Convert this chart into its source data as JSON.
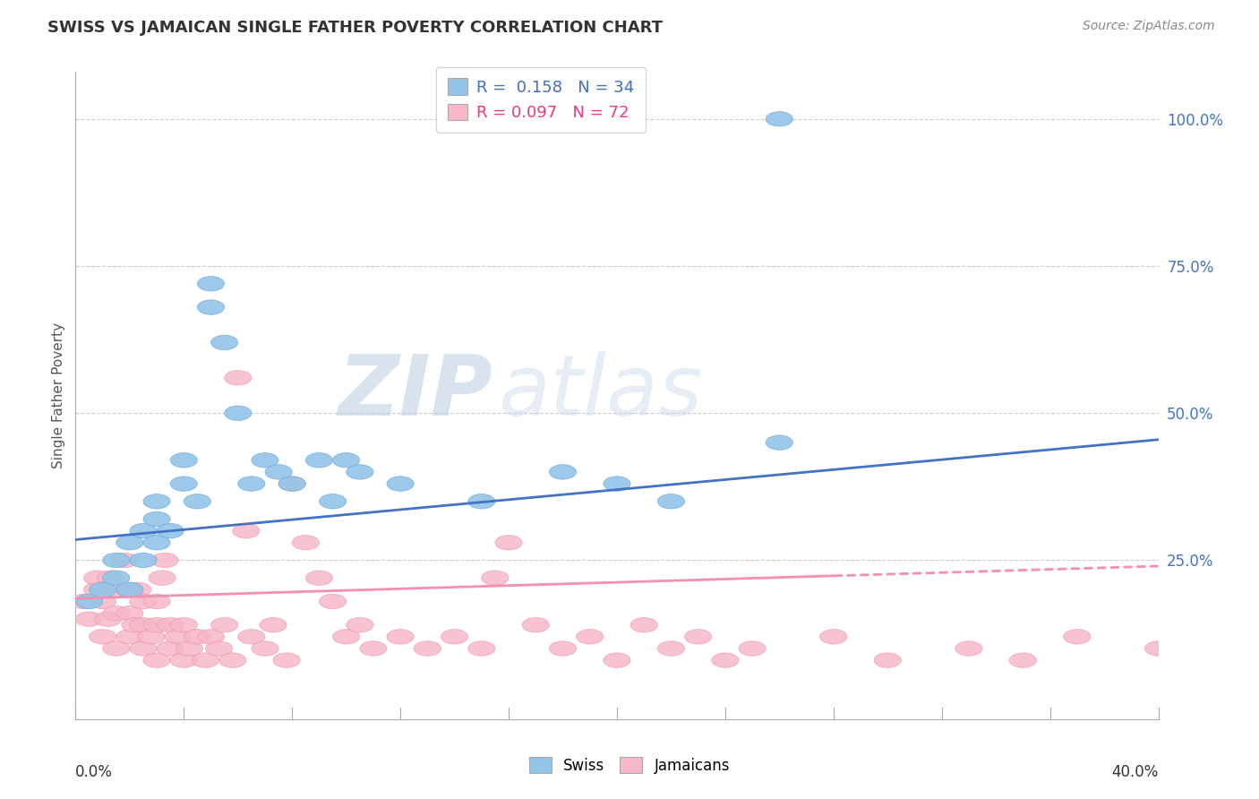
{
  "title": "SWISS VS JAMAICAN SINGLE FATHER POVERTY CORRELATION CHART",
  "source": "Source: ZipAtlas.com",
  "ylabel": "Single Father Poverty",
  "xlim": [
    0,
    0.4
  ],
  "ylim": [
    -0.02,
    1.08
  ],
  "swiss_R": 0.158,
  "swiss_N": 34,
  "jamaican_R": 0.097,
  "jamaican_N": 72,
  "swiss_color": "#92C5E8",
  "jamaican_color": "#F7B8C8",
  "swiss_line_color": "#4472C4",
  "jamaican_line_color": "#F48FB1",
  "watermark_zip": "ZIP",
  "watermark_atlas": "atlas",
  "watermark_color_zip": "#C5D8EC",
  "watermark_color_atlas": "#C5D8EC",
  "background_color": "#FFFFFF",
  "swiss_x": [
    0.005,
    0.01,
    0.015,
    0.015,
    0.02,
    0.02,
    0.025,
    0.025,
    0.03,
    0.03,
    0.03,
    0.035,
    0.04,
    0.04,
    0.045,
    0.05,
    0.05,
    0.055,
    0.06,
    0.065,
    0.07,
    0.075,
    0.08,
    0.09,
    0.095,
    0.1,
    0.105,
    0.12,
    0.15,
    0.18,
    0.2,
    0.22,
    0.26,
    0.26
  ],
  "swiss_y": [
    0.18,
    0.2,
    0.22,
    0.25,
    0.2,
    0.28,
    0.25,
    0.3,
    0.28,
    0.32,
    0.35,
    0.3,
    0.38,
    0.42,
    0.35,
    0.68,
    0.72,
    0.62,
    0.5,
    0.38,
    0.42,
    0.4,
    0.38,
    0.42,
    0.35,
    0.42,
    0.4,
    0.38,
    0.35,
    0.4,
    0.38,
    0.35,
    0.45,
    1.0
  ],
  "jamaican_x": [
    0.003,
    0.005,
    0.008,
    0.008,
    0.01,
    0.01,
    0.012,
    0.013,
    0.015,
    0.015,
    0.015,
    0.018,
    0.02,
    0.02,
    0.02,
    0.022,
    0.023,
    0.025,
    0.025,
    0.025,
    0.028,
    0.03,
    0.03,
    0.03,
    0.032,
    0.033,
    0.035,
    0.035,
    0.038,
    0.04,
    0.04,
    0.042,
    0.045,
    0.048,
    0.05,
    0.053,
    0.055,
    0.058,
    0.06,
    0.063,
    0.065,
    0.07,
    0.073,
    0.078,
    0.08,
    0.085,
    0.09,
    0.095,
    0.1,
    0.105,
    0.11,
    0.12,
    0.13,
    0.14,
    0.15,
    0.155,
    0.16,
    0.17,
    0.18,
    0.19,
    0.2,
    0.21,
    0.22,
    0.23,
    0.24,
    0.25,
    0.28,
    0.3,
    0.33,
    0.35,
    0.37,
    0.4
  ],
  "jamaican_y": [
    0.18,
    0.15,
    0.2,
    0.22,
    0.12,
    0.18,
    0.15,
    0.22,
    0.1,
    0.16,
    0.2,
    0.25,
    0.12,
    0.16,
    0.2,
    0.14,
    0.2,
    0.1,
    0.14,
    0.18,
    0.12,
    0.08,
    0.14,
    0.18,
    0.22,
    0.25,
    0.1,
    0.14,
    0.12,
    0.08,
    0.14,
    0.1,
    0.12,
    0.08,
    0.12,
    0.1,
    0.14,
    0.08,
    0.56,
    0.3,
    0.12,
    0.1,
    0.14,
    0.08,
    0.38,
    0.28,
    0.22,
    0.18,
    0.12,
    0.14,
    0.1,
    0.12,
    0.1,
    0.12,
    0.1,
    0.22,
    0.28,
    0.14,
    0.1,
    0.12,
    0.08,
    0.14,
    0.1,
    0.12,
    0.08,
    0.1,
    0.12,
    0.08,
    0.1,
    0.08,
    0.12,
    0.1
  ],
  "swiss_trend_x0": 0.0,
  "swiss_trend_x1": 0.4,
  "swiss_trend_y0": 0.285,
  "swiss_trend_y1": 0.455,
  "jam_trend_x0": 0.0,
  "jam_trend_x1": 0.4,
  "jam_trend_y0": 0.185,
  "jam_trend_y1": 0.24,
  "ytick_vals": [
    0.25,
    0.5,
    0.75,
    1.0
  ],
  "ytick_labels": [
    "25.0%",
    "50.0%",
    "75.0%",
    "100.0%"
  ]
}
